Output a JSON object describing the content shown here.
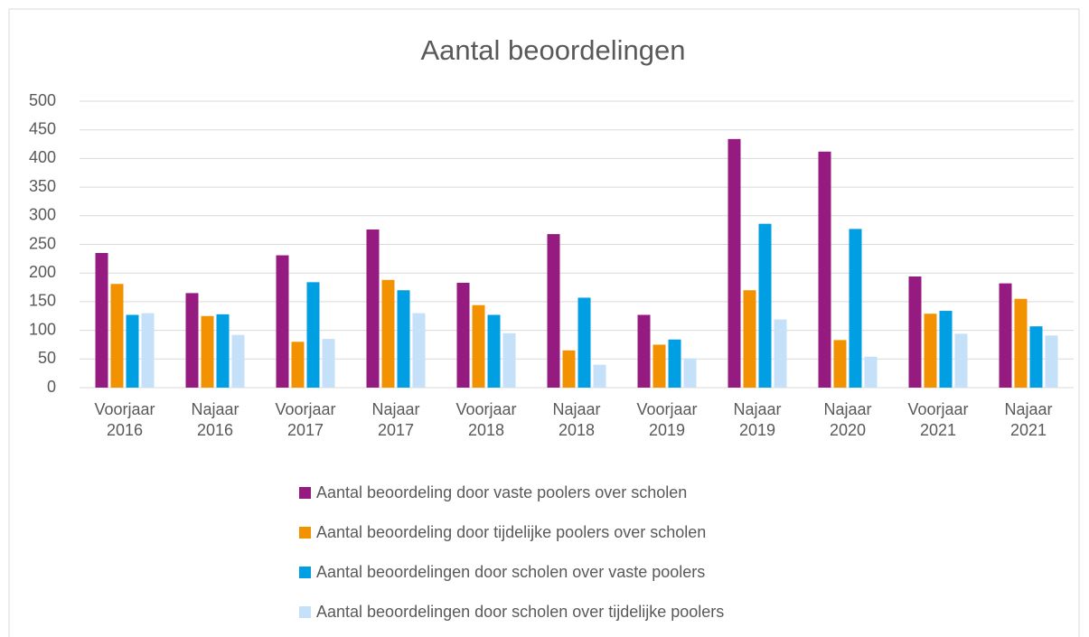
{
  "chart_data": {
    "type": "bar",
    "title": "Aantal beoordelingen",
    "categories": [
      "Voorjaar 2016",
      "Najaar 2016",
      "Voorjaar 2017",
      "Najaar 2017",
      "Voorjaar 2018",
      "Najaar 2018",
      "Voorjaar 2019",
      "Najaar 2019",
      "Najaar 2020",
      "Voorjaar 2021",
      "Najaar 2021"
    ],
    "series": [
      {
        "name": "Aantal beoordeling door vaste poolers over scholen",
        "color": "#951b81",
        "values": [
          235,
          165,
          231,
          276,
          183,
          268,
          127,
          434,
          412,
          194,
          182
        ]
      },
      {
        "name": "Aantal beoordeling door tijdelijke poolers over scholen",
        "color": "#f39200",
        "values": [
          181,
          125,
          80,
          188,
          144,
          65,
          75,
          170,
          83,
          129,
          155
        ]
      },
      {
        "name": "Aantal beoordelingen door scholen over vaste poolers",
        "color": "#009fe3",
        "values": [
          127,
          128,
          184,
          170,
          127,
          157,
          84,
          286,
          277,
          134,
          107
        ]
      },
      {
        "name": "Aantal beoordelingen door scholen over tijdelijke poolers",
        "color": "#c5e0f9",
        "values": [
          130,
          92,
          85,
          130,
          95,
          40,
          51,
          119,
          54,
          94,
          91
        ]
      }
    ],
    "ylim": [
      0,
      500
    ],
    "yticks": [
      0,
      50,
      100,
      150,
      200,
      250,
      300,
      350,
      400,
      450,
      500
    ],
    "grid": true,
    "legend": "bottom"
  }
}
